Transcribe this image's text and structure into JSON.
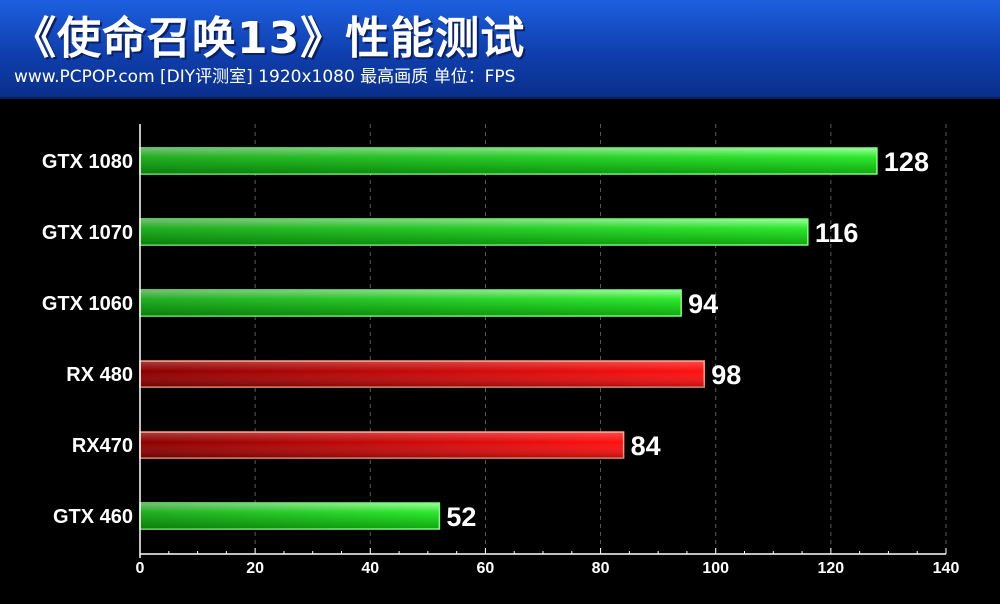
{
  "header": {
    "title": "《使命召唤13》性能测试",
    "subtitle": "www.PCPOP.com [DIY评测室] 1920x1080 最高画质 单位：FPS"
  },
  "colors": {
    "nvidia": "#22dd22",
    "amd": "#ee1a1a"
  },
  "chart_data": {
    "type": "bar",
    "orientation": "horizontal",
    "title": "《使命召唤13》性能测试",
    "categories": [
      "GTX 1080",
      "GTX 1070",
      "GTX 1060",
      "RX 480",
      "RX470",
      "GTX 460"
    ],
    "values": [
      128,
      116,
      94,
      98,
      84,
      52
    ],
    "bar_colors": [
      "nvidia",
      "nvidia",
      "nvidia",
      "amd",
      "amd",
      "nvidia"
    ],
    "xlim": [
      0,
      140
    ],
    "xticks": [
      0,
      20,
      40,
      60,
      80,
      100,
      120,
      140
    ],
    "grid": true,
    "legend": "none"
  }
}
